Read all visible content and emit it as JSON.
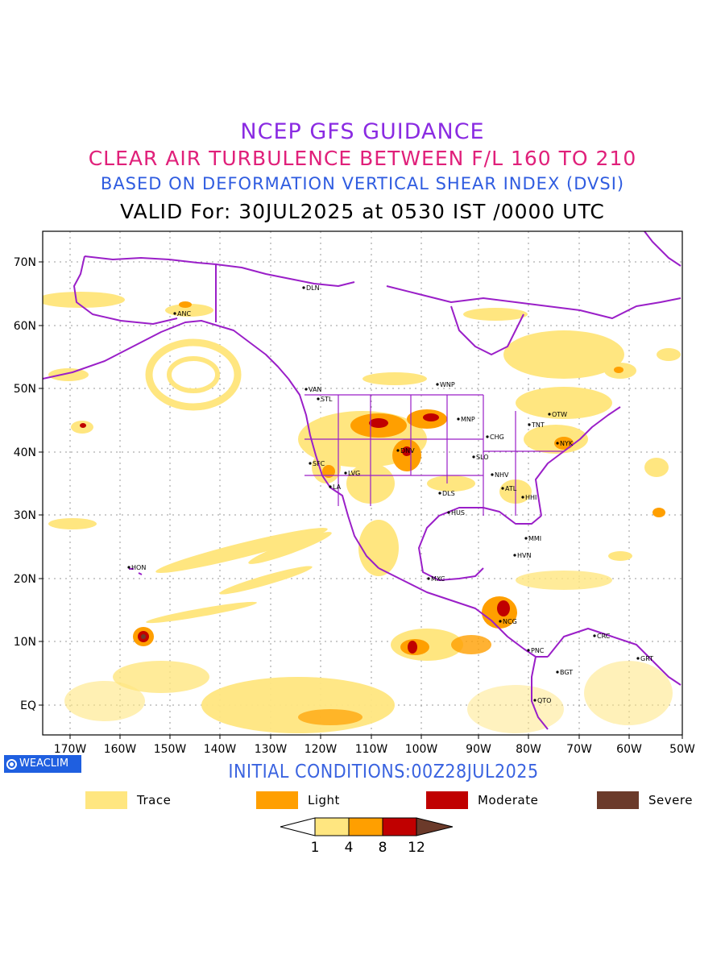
{
  "titles": {
    "line1": "NCEP GFS GUIDANCE",
    "line2": "CLEAR AIR TURBULENCE BETWEEN F/L 160 TO 210",
    "line3": "BASED ON DEFORMATION VERTICAL SHEAR INDEX (DVSI)",
    "line4": "VALID For: 30JUL2025 at 0530 IST /0000 UTC"
  },
  "colors": {
    "line1": "#8a2be2",
    "line2": "#e0207a",
    "line3": "#2f5ce0",
    "init": "#3a63e0",
    "trace": "#ffe680",
    "light": "#ff9f00",
    "moderate": "#c00000",
    "severe": "#6b3a2a",
    "coast": "#9a1fc8"
  },
  "axes": {
    "lat_labels": [
      "70N",
      "60N",
      "50N",
      "40N",
      "30N",
      "20N",
      "10N",
      "EQ"
    ],
    "lon_labels": [
      "170W",
      "160W",
      "150W",
      "140W",
      "130W",
      "120W",
      "110W",
      "100W",
      "90W",
      "80W",
      "70W",
      "60W",
      "50W"
    ]
  },
  "cities": [
    {
      "name": "ANC"
    },
    {
      "name": "DLN"
    },
    {
      "name": "VAN"
    },
    {
      "name": "STL"
    },
    {
      "name": "WNP"
    },
    {
      "name": "OTW"
    },
    {
      "name": "TNT"
    },
    {
      "name": "MNP"
    },
    {
      "name": "CHG"
    },
    {
      "name": "NYK"
    },
    {
      "name": "DNV"
    },
    {
      "name": "SFC"
    },
    {
      "name": "LVG"
    },
    {
      "name": "LA"
    },
    {
      "name": "SLO"
    },
    {
      "name": "NHV"
    },
    {
      "name": "ATL"
    },
    {
      "name": "DLS"
    },
    {
      "name": "HHI"
    },
    {
      "name": "HUS"
    },
    {
      "name": "MMI"
    },
    {
      "name": "HVN"
    },
    {
      "name": "HON"
    },
    {
      "name": "MXC"
    },
    {
      "name": "NCG"
    },
    {
      "name": "CRC"
    },
    {
      "name": "PNC"
    },
    {
      "name": "GRT"
    },
    {
      "name": "BGT"
    },
    {
      "name": "QTO"
    }
  ],
  "badge": {
    "label": "WEACLIM"
  },
  "init_label": "INITIAL CONDITIONS:00Z28JUL2025",
  "legend": [
    {
      "label": "Trace"
    },
    {
      "label": "Light"
    },
    {
      "label": "Moderate"
    },
    {
      "label": "Severe"
    }
  ],
  "colorbar": {
    "ticks": [
      "1",
      "4",
      "8",
      "12"
    ]
  }
}
